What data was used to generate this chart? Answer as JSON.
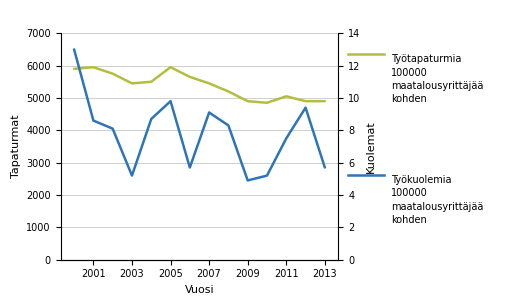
{
  "years": [
    2000,
    2001,
    2002,
    2003,
    2004,
    2005,
    2006,
    2007,
    2008,
    2009,
    2010,
    2011,
    2012,
    2013
  ],
  "tapaturmat": [
    5900,
    5950,
    5750,
    5450,
    5500,
    5950,
    5650,
    5450,
    5200,
    4900,
    4850,
    5050,
    4900,
    4900
  ],
  "kuolemat": [
    13.0,
    8.6,
    8.1,
    5.2,
    8.7,
    9.8,
    5.7,
    9.1,
    8.3,
    4.9,
    5.2,
    7.5,
    9.4,
    5.7
  ],
  "tapaturmat_color": "#b5bd3e",
  "kuolemat_color": "#2e75b6",
  "ylabel_left": "Tapaturmat",
  "ylabel_right": "Kuolemat",
  "xlabel": "Vuosi",
  "ylim_left": [
    0,
    7000
  ],
  "ylim_right": [
    0,
    14
  ],
  "yticks_left": [
    0,
    1000,
    2000,
    3000,
    4000,
    5000,
    6000,
    7000
  ],
  "yticks_right": [
    0,
    2,
    4,
    6,
    8,
    10,
    12,
    14
  ],
  "xticks": [
    2001,
    2003,
    2005,
    2007,
    2009,
    2011,
    2013
  ],
  "xlim": [
    1999.3,
    2013.7
  ],
  "legend_tapaturmat": "Työtapaturmia\n100000\nmaatalousyrittäjää\nkohden",
  "legend_kuolemat": "Työkuolemia\n100000\nmaatalousyrittäjää\nkohden",
  "bg_color": "#ffffff",
  "grid_color": "#c8c8c8",
  "linewidth": 1.8,
  "tick_fontsize": 7,
  "label_fontsize": 8,
  "legend_fontsize": 7
}
